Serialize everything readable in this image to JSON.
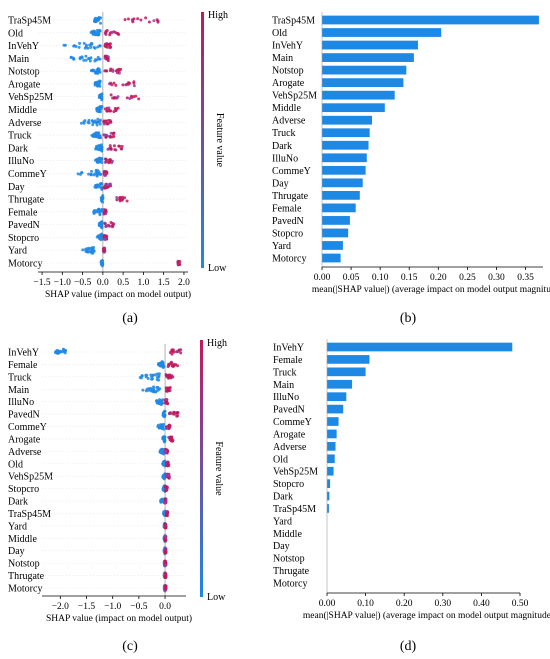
{
  "colorbar": {
    "high_label": "High",
    "low_label": "Low",
    "title": "Feature value"
  },
  "colors": {
    "bar": "#1e88e5",
    "beeswarm_high": "#c2185b",
    "beeswarm_low": "#1e88e5",
    "beeswarm_mid": "#555555"
  },
  "chart_data": [
    {
      "panel": "(a)",
      "type": "scatter",
      "subtype": "shap-beeswarm",
      "features": [
        "TraSp45M",
        "Old",
        "InVehY",
        "Main",
        "Notstop",
        "Arogate",
        "VehSp25M",
        "Middle",
        "Adverse",
        "Truck",
        "Dark",
        "IlluNo",
        "CommeY",
        "Day",
        "Thrugate",
        "Female",
        "PavedN",
        "Stopcro",
        "Yard",
        "Motorcy"
      ],
      "xlabel": "SHAP value (impact on model output)",
      "xticks": [
        -1.5,
        -1.0,
        -0.5,
        0.0,
        0.5,
        1.0,
        1.5,
        2.0
      ],
      "xlim": [
        -1.6,
        2.1
      ],
      "spread": [
        {
          "neg": [
            -0.25,
            -0.05
          ],
          "pos": [
            0.5,
            1.5
          ]
        },
        {
          "neg": [
            -0.3,
            -0.05
          ],
          "pos": [
            0.05,
            0.4
          ]
        },
        {
          "neg": [
            -1.1,
            -0.05
          ],
          "pos": [
            0.05,
            0.2
          ]
        },
        {
          "neg": [
            -1.0,
            -0.05
          ],
          "pos": [
            0.05,
            0.15
          ]
        },
        {
          "neg": [
            -0.3,
            -0.05
          ],
          "pos": [
            0.05,
            0.5
          ]
        },
        {
          "neg": [
            -0.2,
            -0.05
          ],
          "pos": [
            0.1,
            0.8
          ]
        },
        {
          "neg": [
            -0.1,
            -0.02
          ],
          "pos": [
            0.2,
            0.9
          ]
        },
        {
          "neg": [
            -0.2,
            -0.02
          ],
          "pos": [
            0.05,
            0.4
          ]
        },
        {
          "neg": [
            -0.6,
            -0.05
          ],
          "pos": [
            0.02,
            0.2
          ]
        },
        {
          "neg": [
            -0.3,
            -0.05
          ],
          "pos": [
            0.02,
            0.3
          ]
        },
        {
          "neg": [
            -0.2,
            -0.02
          ],
          "pos": [
            0.1,
            0.5
          ]
        },
        {
          "neg": [
            -0.2,
            -0.02
          ],
          "pos": [
            0.05,
            0.25
          ]
        },
        {
          "neg": [
            -0.7,
            -0.05
          ],
          "pos": [
            0.02,
            0.1
          ]
        },
        {
          "neg": [
            -0.2,
            -0.02
          ],
          "pos": [
            0.02,
            0.2
          ]
        },
        {
          "neg": [
            -0.05,
            0.0
          ],
          "pos": [
            0.3,
            0.6
          ]
        },
        {
          "neg": [
            -0.3,
            -0.02
          ],
          "pos": [
            0.02,
            0.1
          ]
        },
        {
          "neg": [
            -0.1,
            -0.02
          ],
          "pos": [
            0.05,
            0.3
          ]
        },
        {
          "neg": [
            -0.15,
            -0.02
          ],
          "pos": [
            0.02,
            0.1
          ]
        },
        {
          "neg": [
            -0.5,
            -0.2
          ],
          "pos": [
            0.0,
            0.05
          ]
        },
        {
          "neg": [
            -0.05,
            0.0
          ],
          "pos": [
            1.85,
            1.9
          ]
        }
      ]
    },
    {
      "panel": "(b)",
      "type": "bar",
      "orientation": "horizontal",
      "categories": [
        "TraSp45M",
        "Old",
        "InVehY",
        "Main",
        "Notstop",
        "Arogate",
        "VehSp25M",
        "Middle",
        "Adverse",
        "Truck",
        "Dark",
        "IlluNo",
        "CommeY",
        "Day",
        "Thrugate",
        "Female",
        "PavedN",
        "Stopcro",
        "Yard",
        "Motorcy"
      ],
      "values": [
        0.373,
        0.205,
        0.165,
        0.158,
        0.145,
        0.14,
        0.125,
        0.108,
        0.086,
        0.082,
        0.08,
        0.077,
        0.075,
        0.07,
        0.065,
        0.058,
        0.048,
        0.045,
        0.036,
        0.032
      ],
      "xlabel": "mean(|SHAP value|) (average impact on model output magnitude)",
      "xticks": [
        0.0,
        0.05,
        0.1,
        0.15,
        0.2,
        0.25,
        0.3,
        0.35
      ],
      "xtick_labels": [
        "0.00",
        "0.05",
        "0.10",
        "0.15",
        "0.20",
        "0.25",
        "0.30",
        "0.35"
      ],
      "xlim": [
        0.0,
        0.38
      ]
    },
    {
      "panel": "(c)",
      "type": "scatter",
      "subtype": "shap-beeswarm",
      "features": [
        "InVehY",
        "Female",
        "Truck",
        "Main",
        "IlluNo",
        "PavedN",
        "CommeY",
        "Arogate",
        "Adverse",
        "Old",
        "VehSp25M",
        "Stopcro",
        "Dark",
        "TraSp45M",
        "Yard",
        "Middle",
        "Day",
        "Notstop",
        "Thrugate",
        "Motorcy"
      ],
      "xlabel": "SHAP value (impact on model output)",
      "xticks": [
        -2.0,
        -1.5,
        -1.0,
        -0.5,
        0.0
      ],
      "xlim": [
        -2.35,
        0.4
      ],
      "spread": [
        {
          "neg": [
            -2.1,
            -1.9
          ],
          "pos": [
            0.1,
            0.3
          ]
        },
        {
          "neg": [
            -0.15,
            -0.02
          ],
          "pos": [
            0.05,
            0.25
          ]
        },
        {
          "neg": [
            -0.5,
            -0.1
          ],
          "pos": [
            0.02,
            0.15
          ]
        },
        {
          "neg": [
            -0.45,
            -0.1
          ],
          "pos": [
            0.02,
            0.1
          ]
        },
        {
          "neg": [
            -0.2,
            -0.02
          ],
          "pos": [
            0.0,
            0.05
          ]
        },
        {
          "neg": [
            -0.05,
            0.0
          ],
          "pos": [
            0.05,
            0.25
          ]
        },
        {
          "neg": [
            -0.15,
            -0.02
          ],
          "pos": [
            0.02,
            0.1
          ]
        },
        {
          "neg": [
            -0.05,
            0.0
          ],
          "pos": [
            0.05,
            0.15
          ]
        },
        {
          "neg": [
            -0.1,
            -0.02
          ],
          "pos": [
            0.0,
            0.05
          ]
        },
        {
          "neg": [
            -0.05,
            0.0
          ],
          "pos": [
            0.02,
            0.08
          ]
        },
        {
          "neg": [
            -0.05,
            0.0
          ],
          "pos": [
            0.02,
            0.08
          ]
        },
        {
          "neg": [
            -0.05,
            0.0
          ],
          "pos": [
            0.0,
            0.05
          ]
        },
        {
          "neg": [
            -0.1,
            0.0
          ],
          "pos": [
            0.0,
            0.02
          ]
        },
        {
          "neg": [
            -0.03,
            0.0
          ],
          "pos": [
            0.02,
            0.05
          ]
        },
        {
          "neg": [
            -0.02,
            0.0
          ],
          "pos": [
            0.0,
            0.02
          ]
        },
        {
          "neg": [
            -0.02,
            0.0
          ],
          "pos": [
            0.0,
            0.02
          ]
        },
        {
          "neg": [
            -0.02,
            0.0
          ],
          "pos": [
            0.0,
            0.02
          ]
        },
        {
          "neg": [
            -0.02,
            0.0
          ],
          "pos": [
            0.0,
            0.02
          ]
        },
        {
          "neg": [
            -0.02,
            0.0
          ],
          "pos": [
            0.0,
            0.02
          ]
        },
        {
          "neg": [
            -0.02,
            0.0
          ],
          "pos": [
            0.0,
            0.02
          ]
        }
      ]
    },
    {
      "panel": "(d)",
      "type": "bar",
      "orientation": "horizontal",
      "categories": [
        "InVehY",
        "Female",
        "Truck",
        "Main",
        "IlluNo",
        "PavedN",
        "CommeY",
        "Arogate",
        "Adverse",
        "Old",
        "VehSp25M",
        "Stopcro",
        "Dark",
        "TraSp45M",
        "Yard",
        "Middle",
        "Day",
        "Notstop",
        "Thrugate",
        "Motorcy"
      ],
      "values": [
        0.48,
        0.11,
        0.1,
        0.065,
        0.05,
        0.042,
        0.03,
        0.025,
        0.022,
        0.02,
        0.017,
        0.008,
        0.006,
        0.005,
        0.0,
        0.0,
        0.0,
        0.0,
        0.0,
        0.0
      ],
      "xlabel": "mean(|SHAP value|) (average impact on model output magnitude)",
      "xticks": [
        0.0,
        0.1,
        0.2,
        0.3,
        0.4,
        0.5
      ],
      "xtick_labels": [
        "0.00",
        "0.10",
        "0.20",
        "0.30",
        "0.40",
        "0.50"
      ],
      "xlim": [
        0.0,
        0.5
      ]
    }
  ]
}
